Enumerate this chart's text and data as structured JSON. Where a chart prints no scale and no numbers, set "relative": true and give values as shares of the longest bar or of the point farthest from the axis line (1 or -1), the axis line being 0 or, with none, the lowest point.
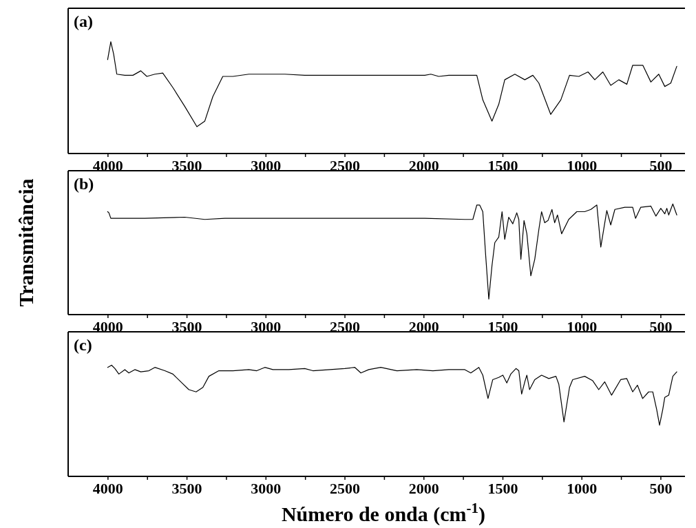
{
  "chart_data": [
    {
      "type": "line",
      "title": "(a)",
      "relative": true,
      "xlim": [
        4250,
        345
      ],
      "color": "#000000",
      "xticks": [
        4000,
        3500,
        3000,
        2500,
        2000,
        1500,
        1000,
        500,
        {
          "value": 3750,
          "label": null
        },
        {
          "value": 3250,
          "label": null
        },
        {
          "value": 2750,
          "label": null
        },
        {
          "value": 2250,
          "label": null
        },
        {
          "value": 1750,
          "label": null
        },
        {
          "value": 1250,
          "label": null
        },
        {
          "value": 750,
          "label": null
        }
      ],
      "x": [
        4000,
        3980,
        3962,
        3942,
        3891,
        3840,
        3790,
        3752,
        3701,
        3651,
        3587,
        3511,
        3435,
        3385,
        3334,
        3271,
        3207,
        3106,
        3005,
        2878,
        2752,
        2499,
        2245,
        1992,
        1954,
        1904,
        1840,
        1739,
        1663,
        1625,
        1567,
        1524,
        1486,
        1422,
        1359,
        1308,
        1270,
        1195,
        1131,
        1076,
        1017,
        959,
        916,
        865,
        815,
        764,
        713,
        676,
        612,
        561,
        511,
        473,
        435,
        397
      ],
      "values": [
        0.84,
        1.0,
        0.89,
        0.71,
        0.7,
        0.7,
        0.74,
        0.69,
        0.71,
        0.72,
        0.59,
        0.42,
        0.24,
        0.29,
        0.51,
        0.69,
        0.69,
        0.71,
        0.71,
        0.71,
        0.7,
        0.7,
        0.7,
        0.7,
        0.71,
        0.69,
        0.7,
        0.7,
        0.7,
        0.48,
        0.29,
        0.44,
        0.66,
        0.71,
        0.66,
        0.7,
        0.63,
        0.35,
        0.48,
        0.7,
        0.69,
        0.73,
        0.66,
        0.73,
        0.61,
        0.66,
        0.62,
        0.79,
        0.79,
        0.64,
        0.71,
        0.6,
        0.63,
        0.78
      ]
    },
    {
      "type": "line",
      "title": "(b)",
      "ylabel": "Transmitância",
      "relative": true,
      "xlim": [
        4250,
        345
      ],
      "color": "#000000",
      "xticks": [
        4000,
        3500,
        3000,
        2500,
        2000,
        1500,
        1000,
        500,
        {
          "value": 3750,
          "label": null
        },
        {
          "value": 3250,
          "label": null
        },
        {
          "value": 2750,
          "label": null
        },
        {
          "value": 2250,
          "label": null
        },
        {
          "value": 1750,
          "label": null
        },
        {
          "value": 1250,
          "label": null
        },
        {
          "value": 750,
          "label": null
        }
      ],
      "x": [
        4000,
        3992,
        3980,
        3942,
        3765,
        3511,
        3385,
        3258,
        3005,
        2752,
        2499,
        2245,
        1992,
        1739,
        1688,
        1663,
        1645,
        1625,
        1607,
        1587,
        1567,
        1549,
        1524,
        1503,
        1486,
        1461,
        1435,
        1410,
        1397,
        1384,
        1364,
        1346,
        1321,
        1296,
        1270,
        1253,
        1233,
        1212,
        1187,
        1170,
        1152,
        1126,
        1081,
        1030,
        980,
        941,
        903,
        878,
        840,
        815,
        789,
        726,
        676,
        658,
        625,
        561,
        529,
        498,
        473,
        460,
        448,
        422,
        397
      ],
      "values": [
        0.93,
        0.92,
        0.87,
        0.87,
        0.87,
        0.88,
        0.86,
        0.87,
        0.87,
        0.87,
        0.87,
        0.87,
        0.87,
        0.86,
        0.86,
        0.99,
        0.99,
        0.93,
        0.54,
        0.14,
        0.44,
        0.65,
        0.7,
        0.93,
        0.68,
        0.88,
        0.82,
        0.92,
        0.86,
        0.5,
        0.85,
        0.73,
        0.35,
        0.5,
        0.77,
        0.93,
        0.83,
        0.85,
        0.95,
        0.83,
        0.9,
        0.73,
        0.86,
        0.93,
        0.93,
        0.95,
        0.99,
        0.61,
        0.94,
        0.81,
        0.95,
        0.97,
        0.97,
        0.87,
        0.97,
        0.98,
        0.89,
        0.96,
        0.91,
        0.96,
        0.9,
        1.0,
        0.9
      ]
    },
    {
      "type": "line",
      "title": "(c)",
      "xlabel": "Número de onda (cm$^{-1}$)",
      "relative": true,
      "xlim": [
        4250,
        345
      ],
      "color": "#000000",
      "xticks": [
        4000,
        3500,
        3000,
        2500,
        2000,
        1500,
        1000,
        500,
        {
          "value": 3750,
          "label": null
        },
        {
          "value": 3250,
          "label": null
        },
        {
          "value": 2750,
          "label": null
        },
        {
          "value": 2250,
          "label": null
        },
        {
          "value": 1750,
          "label": null
        },
        {
          "value": 1250,
          "label": null
        },
        {
          "value": 750,
          "label": null
        }
      ],
      "x": [
        4000,
        3975,
        3954,
        3929,
        3891,
        3866,
        3828,
        3790,
        3739,
        3701,
        3638,
        3587,
        3537,
        3486,
        3440,
        3397,
        3359,
        3296,
        3207,
        3106,
        3056,
        3005,
        2954,
        2853,
        2752,
        2701,
        2499,
        2435,
        2397,
        2347,
        2271,
        2169,
        2043,
        1941,
        1840,
        1739,
        1701,
        1650,
        1625,
        1592,
        1562,
        1524,
        1498,
        1473,
        1448,
        1415,
        1397,
        1379,
        1359,
        1346,
        1329,
        1296,
        1253,
        1207,
        1162,
        1144,
        1111,
        1076,
        1056,
        980,
        929,
        891,
        853,
        810,
        752,
        714,
        676,
        646,
        613,
        575,
        549,
        524,
        506,
        486,
        473,
        448,
        422,
        397
      ],
      "values": [
        0.98,
        1.0,
        0.97,
        0.92,
        0.96,
        0.93,
        0.96,
        0.94,
        0.95,
        0.98,
        0.95,
        0.92,
        0.85,
        0.78,
        0.76,
        0.8,
        0.9,
        0.95,
        0.95,
        0.96,
        0.95,
        0.98,
        0.96,
        0.96,
        0.97,
        0.95,
        0.97,
        0.98,
        0.93,
        0.96,
        0.98,
        0.95,
        0.96,
        0.95,
        0.96,
        0.96,
        0.93,
        0.98,
        0.91,
        0.7,
        0.87,
        0.89,
        0.91,
        0.84,
        0.92,
        0.97,
        0.95,
        0.74,
        0.85,
        0.91,
        0.78,
        0.87,
        0.91,
        0.88,
        0.9,
        0.83,
        0.49,
        0.8,
        0.87,
        0.9,
        0.86,
        0.78,
        0.85,
        0.73,
        0.87,
        0.88,
        0.76,
        0.82,
        0.7,
        0.76,
        0.76,
        0.6,
        0.46,
        0.6,
        0.71,
        0.73,
        0.9,
        0.94
      ]
    }
  ]
}
